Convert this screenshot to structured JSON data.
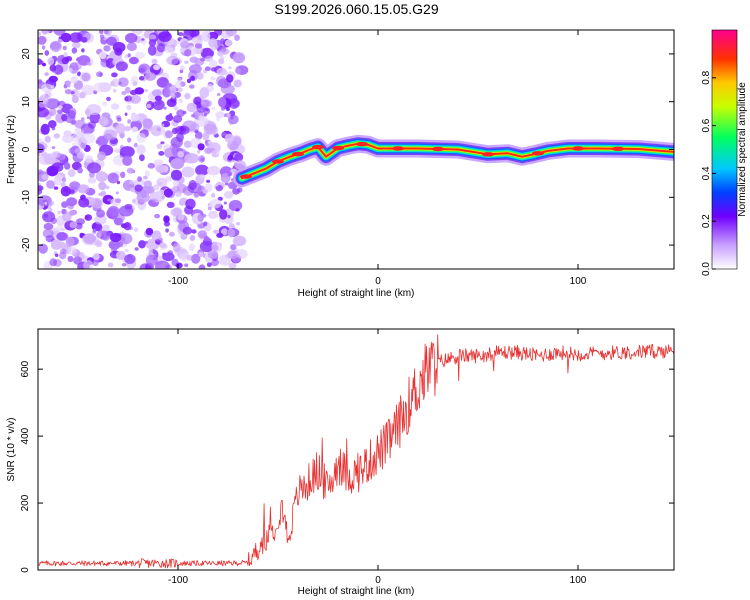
{
  "title": "S199.2026.060.15.05.G29",
  "chart_data": [
    {
      "type": "heatmap",
      "xlabel": "Height of straight line (km)",
      "ylabel": "Frequency (Hz)",
      "xlim": [
        -170,
        148
      ],
      "ylim": [
        -25,
        25
      ],
      "xticks": [
        -100,
        0,
        100
      ],
      "yticks": [
        -20,
        -10,
        0,
        10,
        20
      ],
      "noise_region_x": [
        -170,
        -68
      ],
      "ridge": {
        "x": [
          -68,
          -62,
          -56,
          -50,
          -44,
          -38,
          -34,
          -30,
          -26,
          -20,
          -15,
          -10,
          -5,
          0,
          20,
          40,
          55,
          65,
          72,
          78,
          85,
          95,
          110,
          130,
          148
        ],
        "y": [
          -6,
          -5,
          -4,
          -2.5,
          -1.5,
          -0.7,
          0,
          0.5,
          -1.5,
          0.3,
          0.8,
          1.2,
          1,
          0.2,
          0.2,
          0,
          -1,
          -0.8,
          -1.5,
          -1,
          -0.3,
          0.2,
          0.2,
          0.1,
          -0.5
        ]
      },
      "colorbar": {
        "label": "Normalized spectral amplitude",
        "ticks": [
          "0.0",
          "0.2",
          "0.4",
          "0.6",
          "0.8"
        ]
      }
    },
    {
      "type": "line",
      "xlabel": "Height of straight line (km)",
      "ylabel": "SNR (10 * v/v)",
      "xlim": [
        -170,
        148
      ],
      "ylim": [
        0,
        720
      ],
      "xticks": [
        -100,
        0,
        100
      ],
      "yticks": [
        0,
        200,
        400,
        600
      ],
      "color": "#e83030",
      "series": {
        "x": [
          -170,
          -100,
          -75,
          -65,
          -58,
          -52,
          -48,
          -45,
          -40,
          -35,
          -30,
          -25,
          -20,
          -15,
          -10,
          -5,
          0,
          5,
          10,
          15,
          20,
          25,
          30,
          40,
          50,
          60,
          70,
          80,
          90,
          100,
          120,
          148
        ],
        "y": [
          20,
          20,
          20,
          22,
          80,
          120,
          200,
          90,
          230,
          260,
          300,
          240,
          320,
          280,
          290,
          320,
          350,
          380,
          430,
          490,
          550,
          600,
          620,
          640,
          640,
          650,
          650,
          640,
          650,
          645,
          650,
          655
        ]
      }
    }
  ]
}
